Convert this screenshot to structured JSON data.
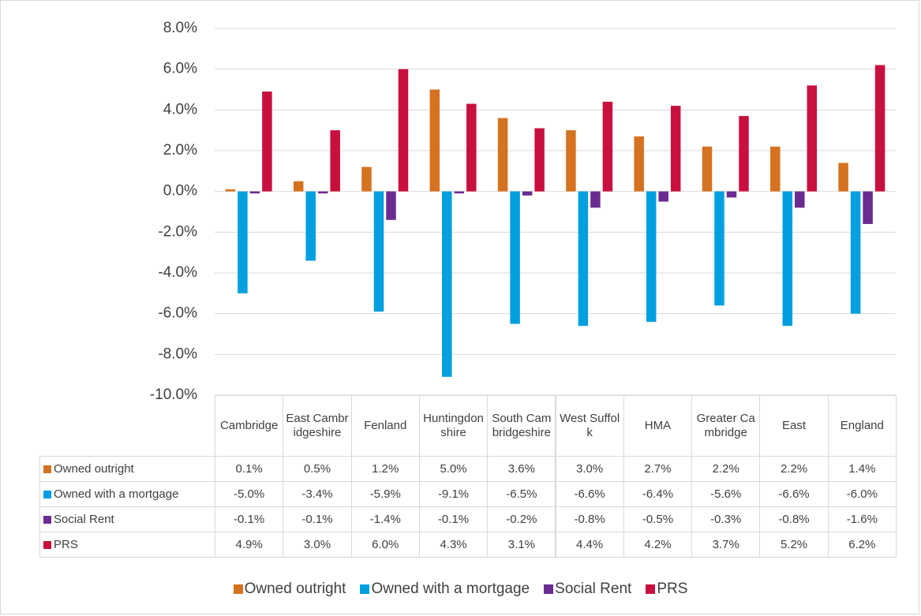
{
  "chart_data": {
    "type": "bar",
    "categories": [
      "Cambridge",
      "East Cambridgeshire",
      "Fenland",
      "Huntingdonshire",
      "South Cambridgeshire",
      "West Suffolk",
      "HMA",
      "Greater Cambridge",
      "East",
      "England"
    ],
    "series": [
      {
        "name": "Owned outright",
        "color": "#d5721f",
        "values": [
          0.1,
          0.5,
          1.2,
          5.0,
          3.6,
          3.0,
          2.7,
          2.2,
          2.2,
          1.4
        ],
        "value_labels": [
          "0.1%",
          "0.5%",
          "1.2%",
          "5.0%",
          "3.6%",
          "3.0%",
          "2.7%",
          "2.2%",
          "2.2%",
          "1.4%"
        ]
      },
      {
        "name": "Owned with a mortgage",
        "color": "#009fdf",
        "values": [
          -5.0,
          -3.4,
          -5.9,
          -9.1,
          -6.5,
          -6.6,
          -6.4,
          -5.6,
          -6.6,
          -6.0
        ],
        "value_labels": [
          "-5.0%",
          "-3.4%",
          "-5.9%",
          "-9.1%",
          "-6.5%",
          "-6.6%",
          "-6.4%",
          "-5.6%",
          "-6.6%",
          "-6.0%"
        ]
      },
      {
        "name": "Social Rent",
        "color": "#6b2c91",
        "values": [
          -0.1,
          -0.1,
          -1.4,
          -0.1,
          -0.2,
          -0.8,
          -0.5,
          -0.3,
          -0.8,
          -1.6
        ],
        "value_labels": [
          "-0.1%",
          "-0.1%",
          "-1.4%",
          "-0.1%",
          "-0.2%",
          "-0.8%",
          "-0.5%",
          "-0.3%",
          "-0.8%",
          "-1.6%"
        ]
      },
      {
        "name": "PRS",
        "color": "#c8103e",
        "values": [
          4.9,
          3.0,
          6.0,
          4.3,
          3.1,
          4.4,
          4.2,
          3.7,
          5.2,
          6.2
        ],
        "value_labels": [
          "4.9%",
          "3.0%",
          "6.0%",
          "4.3%",
          "3.1%",
          "4.4%",
          "4.2%",
          "3.7%",
          "5.2%",
          "6.2%"
        ]
      }
    ],
    "ylim": [
      -10,
      8
    ],
    "yticks": [
      {
        "value": -10,
        "label": "-10.0%"
      },
      {
        "value": -8,
        "label": "-8.0%"
      },
      {
        "value": -6,
        "label": "-6.0%"
      },
      {
        "value": -4,
        "label": "-4.0%"
      },
      {
        "value": -2,
        "label": "-2.0%"
      },
      {
        "value": 0,
        "label": "0.0%"
      },
      {
        "value": 2,
        "label": "2.0%"
      },
      {
        "value": 4,
        "label": "4.0%"
      },
      {
        "value": 6,
        "label": "6.0%"
      },
      {
        "value": 8,
        "label": "8.0%"
      }
    ],
    "grid": true
  }
}
